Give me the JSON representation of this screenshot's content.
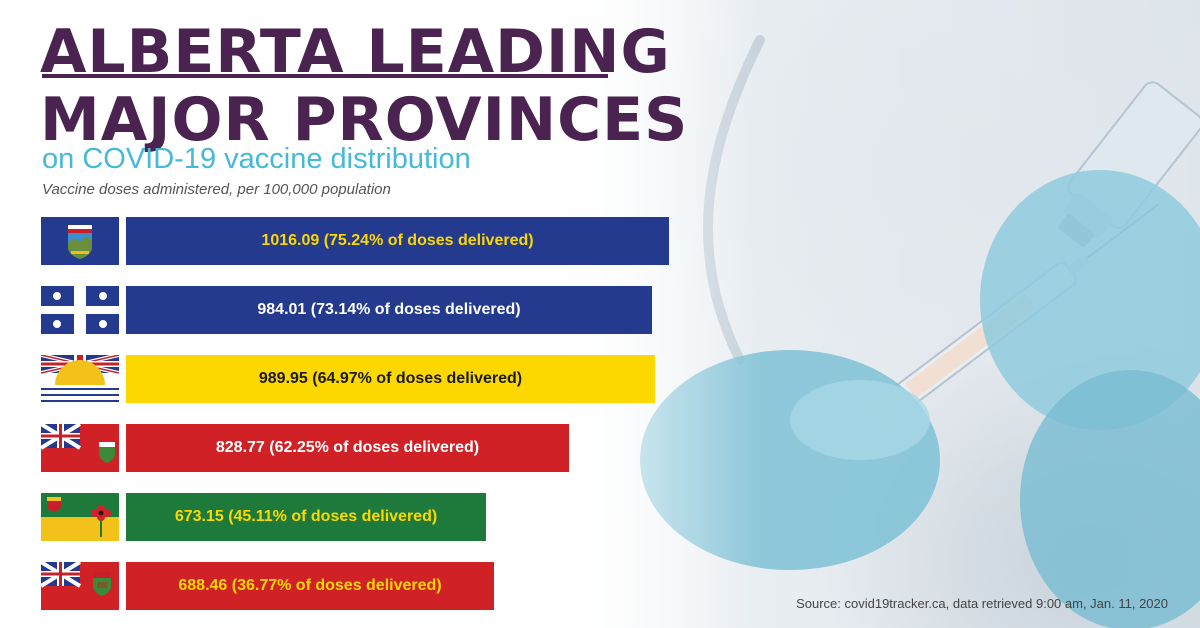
{
  "header": {
    "title_line1": "ALBERTA LEADING",
    "title_line2": "MAJOR PROVINCES",
    "subtitle": "on COVID-19 vaccine distribution",
    "note": "Vaccine doses administered, per 100,000 population"
  },
  "colors": {
    "title": "#4a2350",
    "subtitle": "#46b8d8",
    "blue_bar": "#233a8f",
    "yellow_bar": "#fcd800",
    "red_bar": "#d02127",
    "green_bar": "#1d7a3a",
    "label_on_dark": "#fcd800",
    "label_on_yellow": "#1a1a1a"
  },
  "chart_data": {
    "type": "bar",
    "orientation": "horizontal",
    "title": "ALBERTA LEADING MAJOR PROVINCES",
    "subtitle": "on COVID-19 vaccine distribution",
    "ylabel": "Vaccine doses administered, per 100,000 population",
    "categories": [
      "alberta-flag",
      "quebec-flag",
      "british-columbia-flag",
      "ontario-flag",
      "saskatchewan-flag",
      "manitoba-flag"
    ],
    "values": [
      1016.09,
      984.01,
      989.95,
      828.77,
      673.15,
      688.46
    ],
    "percent_delivered": [
      75.24,
      73.14,
      64.97,
      62.25,
      45.11,
      36.77
    ],
    "bars": [
      {
        "flag": "alberta-flag",
        "value": 1016.09,
        "pct": 75.24,
        "color": "#233a8f",
        "label_color": "#fcd800",
        "label": "1016.09 (75.24% of doses delivered)"
      },
      {
        "flag": "quebec-flag",
        "value": 984.01,
        "pct": 73.14,
        "color": "#233a8f",
        "label_color": "#ffffff",
        "label": "984.01 (73.14% of doses delivered)"
      },
      {
        "flag": "british-columbia-flag",
        "value": 989.95,
        "pct": 64.97,
        "color": "#fcd800",
        "label_color": "#1a1a1a",
        "label": "989.95 (64.97% of doses delivered)"
      },
      {
        "flag": "ontario-flag",
        "value": 828.77,
        "pct": 62.25,
        "color": "#d02127",
        "label_color": "#ffffff",
        "label": "828.77 (62.25% of doses delivered)"
      },
      {
        "flag": "saskatchewan-flag",
        "value": 673.15,
        "pct": 45.11,
        "color": "#1d7a3a",
        "label_color": "#fcd800",
        "label": "673.15 (45.11% of doses delivered)"
      },
      {
        "flag": "manitoba-flag",
        "value": 688.46,
        "pct": 36.77,
        "color": "#d02127",
        "label_color": "#fcd800",
        "label": "688.46 (36.77% of doses delivered)"
      }
    ],
    "grid": false,
    "legend": "none"
  },
  "footer": {
    "source": "Source: covid19tracker.ca, data retrieved 9:00 am, Jan. 11, 2020"
  }
}
